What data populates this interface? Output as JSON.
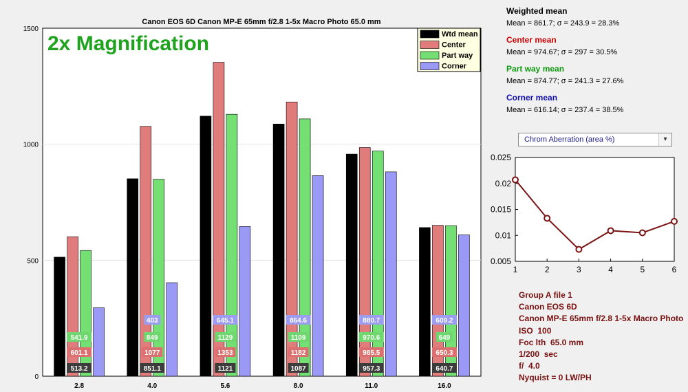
{
  "chart_data": [
    {
      "type": "bar",
      "title": "Canon EOS 6D  Canon MP-E 65mm f/2.8 1-5x Macro Photo  65.0 mm",
      "annotation": "2x Magnification",
      "categories": [
        "2.8",
        "4.0",
        "5.6",
        "8.0",
        "11.0",
        "16.0"
      ],
      "ylim": [
        0,
        1500
      ],
      "yticks": [
        0,
        500,
        1000,
        1500
      ],
      "grid": true,
      "legend_position": "top-right",
      "series": [
        {
          "name": "Wtd mean",
          "color": "#000000",
          "label_bg": "#3c3c3c",
          "values": [
            513.2,
            851.1,
            1121,
            1087,
            957.3,
            640.7
          ],
          "labels": [
            "513.2",
            "851.1",
            "1121",
            "1087",
            "957.3",
            "640.7"
          ]
        },
        {
          "name": "Center",
          "color": "#e07c7c",
          "label_bg": "#dc7070",
          "values": [
            601.1,
            1077,
            1353,
            1182,
            985.5,
            650.3
          ],
          "labels": [
            "601.1",
            "1077",
            "1353",
            "1182",
            "985.5",
            "650.3"
          ]
        },
        {
          "name": "Part way",
          "color": "#74e074",
          "label_bg": "#6ed76e",
          "values": [
            541.9,
            849,
            1129,
            1109,
            970.6,
            649
          ],
          "labels": [
            "541.9",
            "849",
            "1129",
            "1109",
            "970.6",
            "649"
          ]
        },
        {
          "name": "Corner",
          "color": "#9a9af6",
          "label_bg": "#9c9cf0",
          "values": [
            295,
            403,
            645.1,
            864.6,
            880.7,
            609.2
          ],
          "labels": [
            "",
            "403",
            "645.1",
            "864.6",
            "880.7",
            "609.2"
          ]
        }
      ]
    },
    {
      "type": "line",
      "x": [
        1,
        2,
        3,
        4,
        5,
        6
      ],
      "y": [
        0.0207,
        0.0133,
        0.0073,
        0.0109,
        0.0105,
        0.0127
      ],
      "xlim": [
        1,
        6
      ],
      "ylim": [
        0.005,
        0.025
      ],
      "xticks": [
        "1",
        "2",
        "3",
        "4",
        "5",
        "6"
      ],
      "yticks": [
        "0.005",
        "0.01",
        "0.015",
        "0.02",
        "0.025"
      ],
      "color": "#7a1414",
      "grid": false
    }
  ],
  "stats": [
    {
      "title": "Weighted mean",
      "title_color": "#000000",
      "line": "Mean = 861.7;  σ = 243.9 = 28.3%"
    },
    {
      "title": "Center mean",
      "title_color": "#cc0000",
      "line": "Mean = 974.67;  σ = 297 = 30.5%"
    },
    {
      "title": "Part way mean",
      "title_color": "#0f9a0f",
      "line": "Mean = 874.77;  σ = 241.3 = 27.6%"
    },
    {
      "title": "Corner mean",
      "title_color": "#1010b0",
      "line": "Mean = 616.14;  σ = 237.4 = 38.5%"
    }
  ],
  "selector": {
    "value": "Chrom Aberration (area %)",
    "arrow_icon": "chevron-down-icon"
  },
  "info": [
    "Group A file 1",
    "Canon EOS 6D",
    "Canon MP-E 65mm f/2.8 1-5x Macro Photo",
    "ISO  100",
    "Foc lth  65.0 mm",
    "1/200  sec",
    "f/  4.0",
    "Nyquist = 0 LW/PH"
  ]
}
